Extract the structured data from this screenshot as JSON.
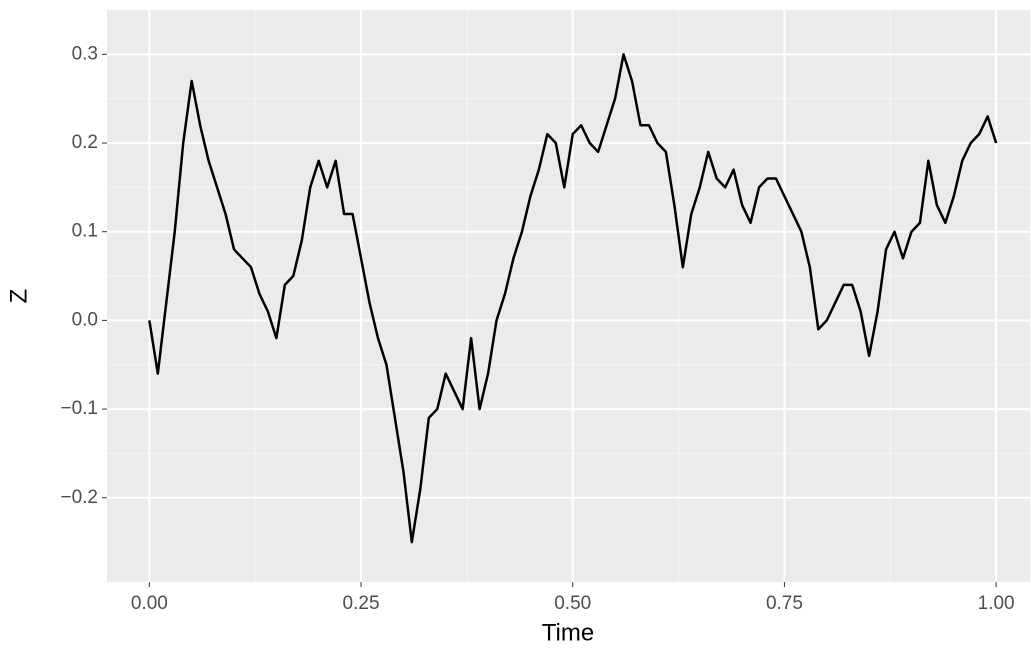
{
  "chart_data": {
    "type": "line",
    "x_label": "Time",
    "y_label": "Z",
    "x": [
      0,
      0.01,
      0.02,
      0.03,
      0.04,
      0.05,
      0.06,
      0.07,
      0.08,
      0.09,
      0.1,
      0.11,
      0.12,
      0.13,
      0.14,
      0.15,
      0.16,
      0.17,
      0.18,
      0.19,
      0.2,
      0.21,
      0.22,
      0.23,
      0.24,
      0.25,
      0.26,
      0.27,
      0.28,
      0.29,
      0.3,
      0.31,
      0.32,
      0.33,
      0.34,
      0.35,
      0.36,
      0.37,
      0.38,
      0.39,
      0.4,
      0.41,
      0.42,
      0.43,
      0.44,
      0.45,
      0.46,
      0.47,
      0.48,
      0.49,
      0.5,
      0.51,
      0.52,
      0.53,
      0.54,
      0.55,
      0.56,
      0.57,
      0.58,
      0.59,
      0.6,
      0.61,
      0.62,
      0.63,
      0.64,
      0.65,
      0.66,
      0.67,
      0.68,
      0.69,
      0.7,
      0.71,
      0.72,
      0.73,
      0.74,
      0.75,
      0.76,
      0.77,
      0.78,
      0.79,
      0.8,
      0.81,
      0.82,
      0.83,
      0.84,
      0.85,
      0.86,
      0.87,
      0.88,
      0.89,
      0.9,
      0.91,
      0.92,
      0.93,
      0.94,
      0.95,
      0.96,
      0.97,
      0.98,
      0.99,
      1
    ],
    "values": [
      0,
      -0.06,
      0.02,
      0.1,
      0.2,
      0.27,
      0.22,
      0.18,
      0.15,
      0.12,
      0.08,
      0.07,
      0.06,
      0.03,
      0.01,
      -0.02,
      0.04,
      0.05,
      0.09,
      0.15,
      0.18,
      0.15,
      0.18,
      0.12,
      0.12,
      0.07,
      0.02,
      -0.02,
      -0.05,
      -0.11,
      -0.17,
      -0.25,
      -0.19,
      -0.11,
      -0.1,
      -0.06,
      -0.08,
      -0.1,
      -0.02,
      -0.1,
      -0.06,
      0,
      0.03,
      0.07,
      0.1,
      0.14,
      0.17,
      0.21,
      0.2,
      0.15,
      0.21,
      0.22,
      0.2,
      0.19,
      0.22,
      0.25,
      0.3,
      0.27,
      0.22,
      0.22,
      0.2,
      0.19,
      0.13,
      0.06,
      0.12,
      0.15,
      0.19,
      0.16,
      0.15,
      0.17,
      0.13,
      0.11,
      0.15,
      0.16,
      0.16,
      0.14,
      0.12,
      0.1,
      0.06,
      -0.01,
      0,
      0.02,
      0.04,
      0.04,
      0.01,
      -0.04,
      0.01,
      0.08,
      0.1,
      0.07,
      0.1,
      0.11,
      0.18,
      0.13,
      0.11,
      0.14,
      0.18,
      0.2,
      0.21,
      0.23,
      0.2
    ],
    "color": "#000000",
    "xlim": [
      -0.05,
      1.04
    ],
    "ylim": [
      -0.295,
      0.35
    ],
    "xticks": [
      {
        "value": 0,
        "label": "0.00"
      },
      {
        "value": 0.25,
        "label": "0.25"
      },
      {
        "value": 0.5,
        "label": "0.50"
      },
      {
        "value": 0.75,
        "label": "0.75"
      },
      {
        "value": 1,
        "label": "1.00"
      }
    ],
    "yticks": [
      {
        "value": -0.2,
        "label": "−0.2"
      },
      {
        "value": -0.1,
        "label": "−0.1"
      },
      {
        "value": 0,
        "label": "0.0"
      },
      0.1,
      0.2,
      0.3
    ],
    "grid": true
  }
}
